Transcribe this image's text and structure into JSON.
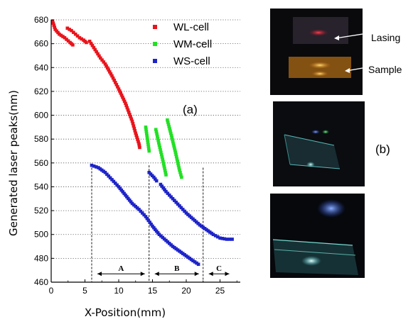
{
  "chart_data": {
    "type": "scatter",
    "title": "",
    "xlabel": "X-Position(mm)",
    "ylabel": "Generated laser peaks(nm)",
    "xlim": [
      0,
      28
    ],
    "ylim": [
      460,
      680
    ],
    "xticks": [
      0,
      5,
      10,
      15,
      20,
      25
    ],
    "yticks": [
      460,
      480,
      500,
      520,
      540,
      560,
      580,
      600,
      620,
      640,
      660,
      680
    ],
    "grid": true,
    "legend_position": "top-right",
    "panel_label": "(a)",
    "series": [
      {
        "name": "WL-cell",
        "color": "#e8141c",
        "segments": [
          [
            [
              0.2,
              679
            ],
            [
              0.6,
              672
            ],
            [
              1.2,
              668
            ],
            [
              2.0,
              665
            ],
            [
              2.8,
              661
            ],
            [
              3.2,
              659
            ]
          ],
          [
            [
              2.4,
              673
            ],
            [
              3.0,
              671
            ],
            [
              3.6,
              668
            ],
            [
              4.2,
              665
            ],
            [
              4.8,
              663
            ],
            [
              5.2,
              661
            ]
          ],
          [
            [
              5.7,
              662
            ],
            [
              6.5,
              655
            ],
            [
              7.3,
              648
            ],
            [
              8.0,
              643
            ],
            [
              9.0,
              633
            ],
            [
              10.0,
              622
            ],
            [
              11.0,
              610
            ],
            [
              12.0,
              595
            ],
            [
              12.5,
              585
            ],
            [
              13.0,
              576
            ],
            [
              13.1,
              573
            ]
          ]
        ]
      },
      {
        "name": "WM-cell",
        "color": "#23e025",
        "segments": [
          [
            [
              14.0,
              590
            ],
            [
              14.5,
              570
            ]
          ],
          [
            [
              15.5,
              588
            ],
            [
              16.0,
              575
            ],
            [
              16.5,
              563
            ],
            [
              17.0,
              550
            ]
          ],
          [
            [
              17.2,
              596
            ],
            [
              17.8,
              583
            ],
            [
              18.4,
              569
            ],
            [
              19.0,
              554
            ],
            [
              19.3,
              548
            ]
          ]
        ]
      },
      {
        "name": "WS-cell",
        "color": "#1e24c8",
        "segments": [
          [
            [
              6.0,
              558
            ],
            [
              7.0,
              556
            ],
            [
              8.0,
              552
            ],
            [
              9.0,
              546
            ],
            [
              10.0,
              540
            ],
            [
              11.0,
              533
            ],
            [
              12.0,
              526
            ],
            [
              13.0,
              521
            ],
            [
              14.0,
              515
            ],
            [
              15.0,
              507
            ],
            [
              16.0,
              500
            ],
            [
              17.0,
              495
            ],
            [
              18.0,
              490
            ],
            [
              19.0,
              486
            ],
            [
              20.0,
              482
            ],
            [
              21.0,
              478
            ],
            [
              21.8,
              475
            ]
          ],
          [
            [
              14.5,
              552
            ],
            [
              15.2,
              548
            ],
            [
              15.6,
              545
            ]
          ],
          [
            [
              16.2,
              542
            ],
            [
              17.0,
              536
            ],
            [
              18.0,
              530
            ],
            [
              19.0,
              524
            ],
            [
              20.0,
              518
            ],
            [
              21.0,
              513
            ],
            [
              22.0,
              508
            ],
            [
              23.0,
              504
            ],
            [
              24.0,
              500
            ],
            [
              25.0,
              497
            ],
            [
              26.0,
              496
            ],
            [
              26.8,
              496
            ]
          ]
        ]
      }
    ],
    "regions": [
      {
        "label": "A",
        "x_start": 6.0,
        "x_end": 14.5
      },
      {
        "label": "B",
        "x_start": 14.5,
        "x_end": 22.5
      },
      {
        "label": "C",
        "x_start": 22.5,
        "x_end": 27.0
      }
    ]
  },
  "photos": {
    "panel_label": "(b)",
    "annotations": [
      {
        "label": "Lasing"
      },
      {
        "label": "Sample"
      }
    ]
  }
}
